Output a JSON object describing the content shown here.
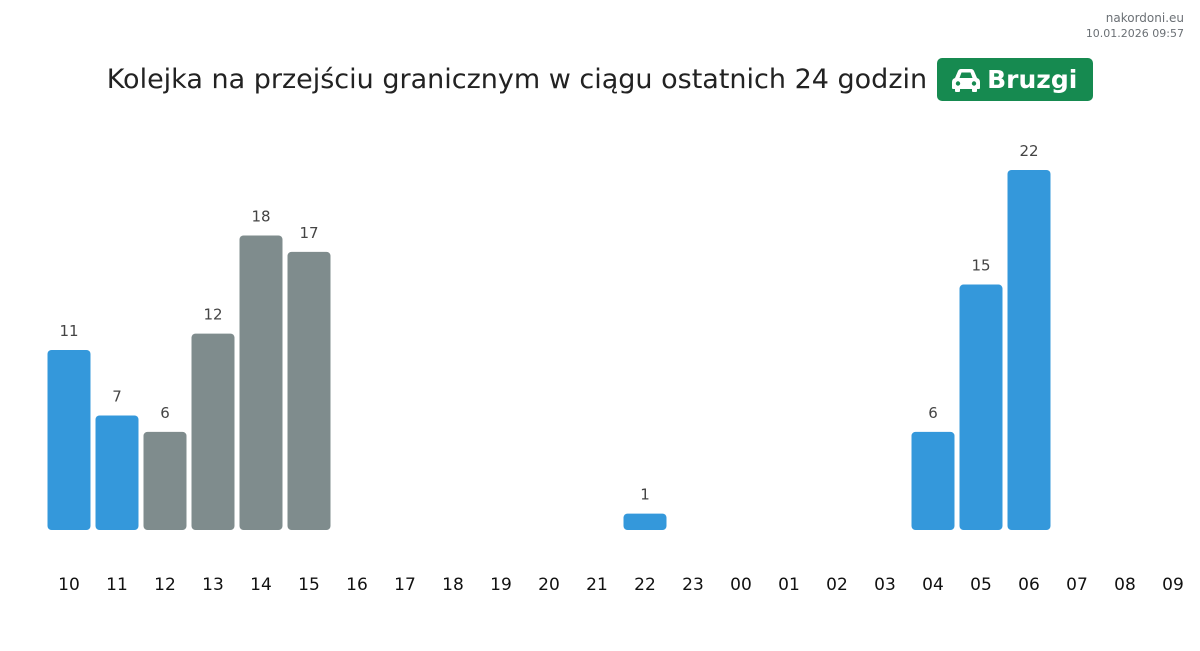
{
  "watermark": {
    "site": "nakordoni.eu",
    "timestamp": "10.01.2026 09:57"
  },
  "header": {
    "title": "Kolejka na przejściu granicznym w ciągu ostatnich 24 godzin",
    "checkpoint": "Bruzgi",
    "checkpoint_icon": "car-icon",
    "checkpoint_color": "#168a50"
  },
  "colors": {
    "blue": "#3498db",
    "gray": "#7f8c8d"
  },
  "chart_data": {
    "type": "bar",
    "title": "Kolejka na przejściu granicznym w ciągu ostatnich 24 godzin",
    "xlabel": "",
    "ylabel": "",
    "grid": false,
    "ylim": [
      0,
      22
    ],
    "categories": [
      "10",
      "11",
      "12",
      "13",
      "14",
      "15",
      "16",
      "17",
      "18",
      "19",
      "20",
      "21",
      "22",
      "23",
      "00",
      "01",
      "02",
      "03",
      "04",
      "05",
      "06",
      "07",
      "08",
      "09"
    ],
    "values": [
      11,
      7,
      6,
      12,
      18,
      17,
      null,
      null,
      null,
      null,
      null,
      null,
      1,
      null,
      null,
      null,
      null,
      null,
      6,
      15,
      22,
      null,
      null,
      null
    ],
    "bar_colors": [
      "blue",
      "blue",
      "gray",
      "gray",
      "gray",
      "gray",
      null,
      null,
      null,
      null,
      null,
      null,
      "blue",
      null,
      null,
      null,
      null,
      null,
      "blue",
      "blue",
      "blue",
      null,
      null,
      null
    ]
  }
}
